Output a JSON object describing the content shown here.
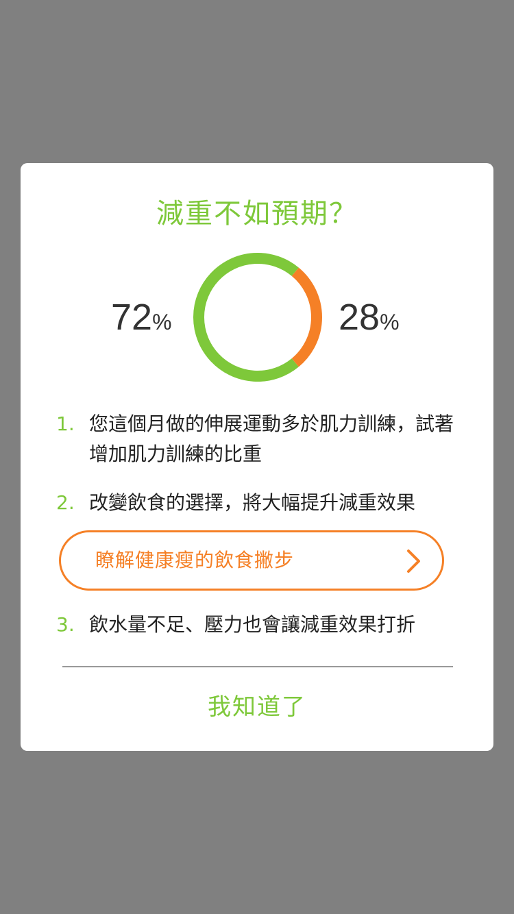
{
  "dialog": {
    "title": "減重不如預期？",
    "chart": {
      "left_value": "72",
      "left_unit": "%",
      "right_value": "28",
      "right_unit": "%"
    },
    "tips": [
      {
        "index": "1.",
        "text": "您這個月做的伸展運動多於肌力訓練，試著增加肌力訓練的比重"
      },
      {
        "index": "2.",
        "text": "改變飲食的選擇，將大幅提升減重效果"
      },
      {
        "index": "3.",
        "text": "飲水量不足、壓力也會讓減重效果打折"
      }
    ],
    "cta_label": "瞭解健康瘦的飲食撇步",
    "confirm_label": "我知道了"
  },
  "chart_data": {
    "type": "pie",
    "categories": [
      "",
      ""
    ],
    "values": [
      72,
      28
    ],
    "colors": [
      "#7ec83a",
      "#f58026"
    ]
  },
  "colors": {
    "overlay": "#808080",
    "green": "#7ec83a",
    "orange": "#f58026"
  },
  "icons": {
    "cta_chevron": "chevron-right-icon"
  }
}
